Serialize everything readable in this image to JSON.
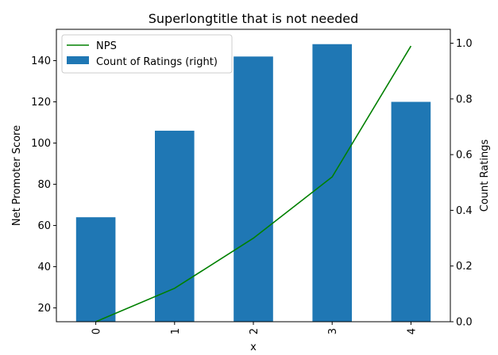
{
  "chart_data": {
    "type": "bar",
    "title": "Superlongtitle that is not needed",
    "xlabel": "x",
    "ylabel": "Net Promoter Score",
    "y2label": "Count Ratings",
    "categories": [
      "0",
      "1",
      "2",
      "3",
      "4"
    ],
    "ylim": [
      13.3,
      155.2
    ],
    "y2lim": [
      0.0,
      1.05
    ],
    "yticks": [
      20,
      40,
      60,
      80,
      100,
      120,
      140
    ],
    "y2ticks": [
      0.0,
      0.2,
      0.4,
      0.6,
      0.8,
      1.0
    ],
    "series": [
      {
        "name": "Count of Ratings (right)",
        "type": "bar",
        "axis": "left",
        "values": [
          64,
          106,
          142,
          148,
          120
        ]
      },
      {
        "name": "NPS",
        "type": "line",
        "axis": "right",
        "values": [
          0.0,
          0.12,
          0.3,
          0.52,
          0.99
        ]
      }
    ],
    "legend": "top-left",
    "colors": {
      "bar": "#1f77b4",
      "line": "#008000"
    }
  }
}
